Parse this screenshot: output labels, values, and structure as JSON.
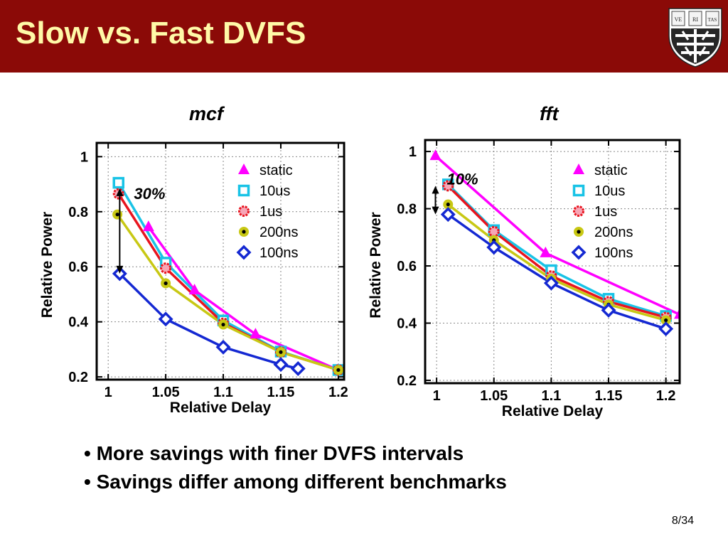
{
  "slide": {
    "title": "Slow vs. Fast DVFS",
    "page_number": "8/34",
    "bullets": [
      "More savings with finer DVFS intervals",
      "Savings differ among different benchmarks"
    ],
    "logo": {
      "shield_text": [
        "VE",
        "RI",
        "TAS"
      ]
    }
  },
  "colors": {
    "header_bg": "#8b0a07",
    "title_text": "#fff9a8",
    "static": "#ff00ff",
    "10us": "#19c3e6",
    "1us": "#e8141e",
    "200ns": "#c8c814",
    "100ns": "#1428d2"
  },
  "chart_data": [
    {
      "type": "line",
      "title": "mcf",
      "xlabel": "Relative Delay",
      "ylabel": "Relative Power",
      "xlim": [
        0.99,
        1.205
      ],
      "ylim": [
        0.19,
        1.05
      ],
      "xticks": [
        {
          "v": 1,
          "label": "1"
        },
        {
          "v": 1.05,
          "label": "1.05"
        },
        {
          "v": 1.1,
          "label": "1.1"
        },
        {
          "v": 1.15,
          "label": "1.15"
        },
        {
          "v": 1.2,
          "label": "1.2"
        }
      ],
      "yticks": [
        {
          "v": 0.2,
          "label": "0.2"
        },
        {
          "v": 0.4,
          "label": "0.4"
        },
        {
          "v": 0.6,
          "label": "0.6"
        },
        {
          "v": 0.8,
          "label": "0.8"
        },
        {
          "v": 1,
          "label": "1"
        }
      ],
      "grid": true,
      "legend": "top-right",
      "annotation": {
        "text": "30%",
        "x": 1.01,
        "y_top": 0.885,
        "y_bottom": 0.575
      },
      "series": [
        {
          "name": "static",
          "marker": "triangle",
          "x": [
            1.035,
            1.075,
            1.128,
            1.2
          ],
          "y": [
            0.745,
            0.515,
            0.355,
            0.225
          ]
        },
        {
          "name": "10us",
          "marker": "square",
          "x": [
            1.009,
            1.05,
            1.1,
            1.15,
            1.2
          ],
          "y": [
            0.905,
            0.615,
            0.405,
            0.292,
            0.225
          ]
        },
        {
          "name": "1us",
          "marker": "star",
          "x": [
            1.009,
            1.05,
            1.1,
            1.15,
            1.2
          ],
          "y": [
            0.865,
            0.595,
            0.395,
            0.29,
            0.225
          ]
        },
        {
          "name": "200ns",
          "marker": "dot",
          "x": [
            1.008,
            1.05,
            1.1,
            1.15,
            1.2
          ],
          "y": [
            0.79,
            0.54,
            0.39,
            0.29,
            0.225
          ]
        },
        {
          "name": "100ns",
          "marker": "diamond",
          "x": [
            1.01,
            1.05,
            1.1,
            1.15,
            1.165
          ],
          "y": [
            0.575,
            0.41,
            0.308,
            0.245,
            0.23
          ]
        }
      ]
    },
    {
      "type": "line",
      "title": "fft",
      "xlabel": "Relative Delay",
      "ylabel": "Relative Power",
      "xlim": [
        0.99,
        1.212
      ],
      "ylim": [
        0.19,
        1.04
      ],
      "xticks": [
        {
          "v": 1,
          "label": "1"
        },
        {
          "v": 1.05,
          "label": "1.05"
        },
        {
          "v": 1.1,
          "label": "1.1"
        },
        {
          "v": 1.15,
          "label": "1.15"
        },
        {
          "v": 1.2,
          "label": "1.2"
        }
      ],
      "yticks": [
        {
          "v": 0.2,
          "label": "0.2"
        },
        {
          "v": 0.4,
          "label": "0.4"
        },
        {
          "v": 0.6,
          "label": "0.6"
        },
        {
          "v": 0.8,
          "label": "0.8"
        },
        {
          "v": 1,
          "label": "1"
        }
      ],
      "grid": true,
      "legend": "top-right",
      "annotation": {
        "text": "10%",
        "x": 0.999,
        "y_top": 0.88,
        "y_bottom": 0.78
      },
      "series": [
        {
          "name": "static",
          "marker": "triangle",
          "x": [
            0.999,
            1.095,
            1.212
          ],
          "y": [
            0.985,
            0.645,
            0.43
          ]
        },
        {
          "name": "10us",
          "marker": "square",
          "x": [
            1.01,
            1.05,
            1.1,
            1.15,
            1.2
          ],
          "y": [
            0.885,
            0.725,
            0.585,
            0.485,
            0.425
          ]
        },
        {
          "name": "1us",
          "marker": "star",
          "x": [
            1.01,
            1.05,
            1.1,
            1.15,
            1.2
          ],
          "y": [
            0.88,
            0.72,
            0.565,
            0.475,
            0.42
          ]
        },
        {
          "name": "200ns",
          "marker": "dot",
          "x": [
            1.01,
            1.05,
            1.1,
            1.15,
            1.2
          ],
          "y": [
            0.815,
            0.69,
            0.555,
            0.465,
            0.41
          ]
        },
        {
          "name": "100ns",
          "marker": "diamond",
          "x": [
            1.01,
            1.05,
            1.1,
            1.15,
            1.2
          ],
          "y": [
            0.78,
            0.665,
            0.54,
            0.445,
            0.38
          ]
        }
      ]
    }
  ]
}
